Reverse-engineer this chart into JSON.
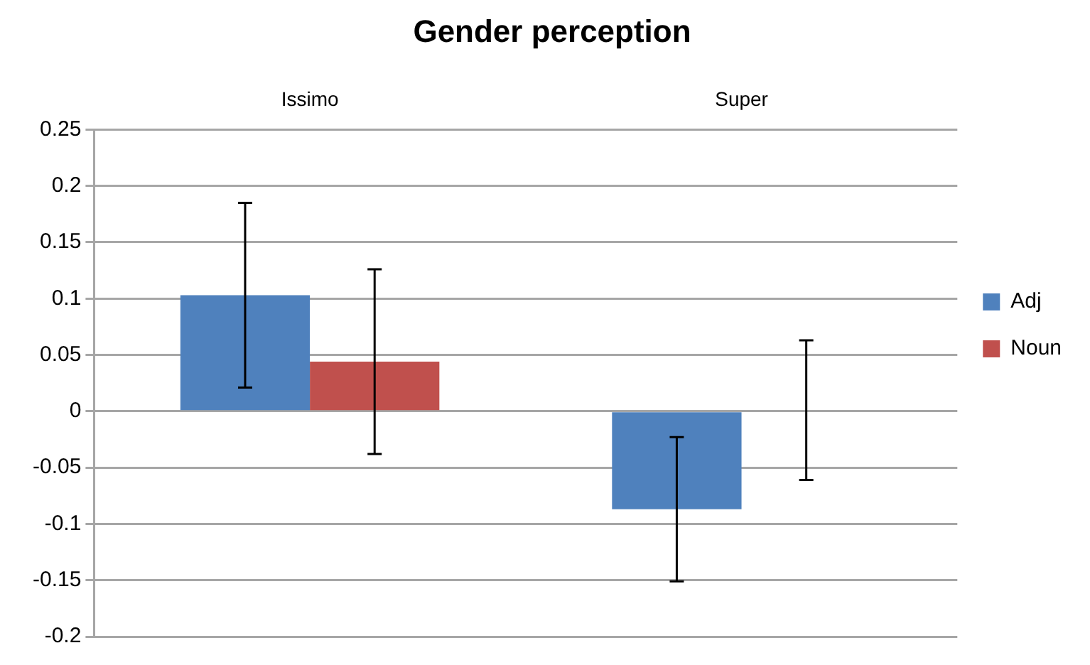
{
  "chart_data": {
    "type": "bar",
    "title": "Gender perception",
    "categories": [
      "Issimo",
      "Super"
    ],
    "series": [
      {
        "name": "Adj",
        "color": "#4f81bd",
        "values": [
          0.103,
          -0.087
        ],
        "errors": [
          0.082,
          0.064
        ]
      },
      {
        "name": "Noun",
        "color": "#c0504d",
        "values": [
          0.044,
          0.001
        ],
        "errors": [
          0.082,
          0.062
        ]
      }
    ],
    "ylim": [
      -0.2,
      0.25
    ],
    "yticks": [
      -0.2,
      -0.15,
      -0.1,
      -0.05,
      0,
      0.05,
      0.1,
      0.15,
      0.2,
      0.25
    ],
    "grid": "y",
    "legend": "right"
  }
}
